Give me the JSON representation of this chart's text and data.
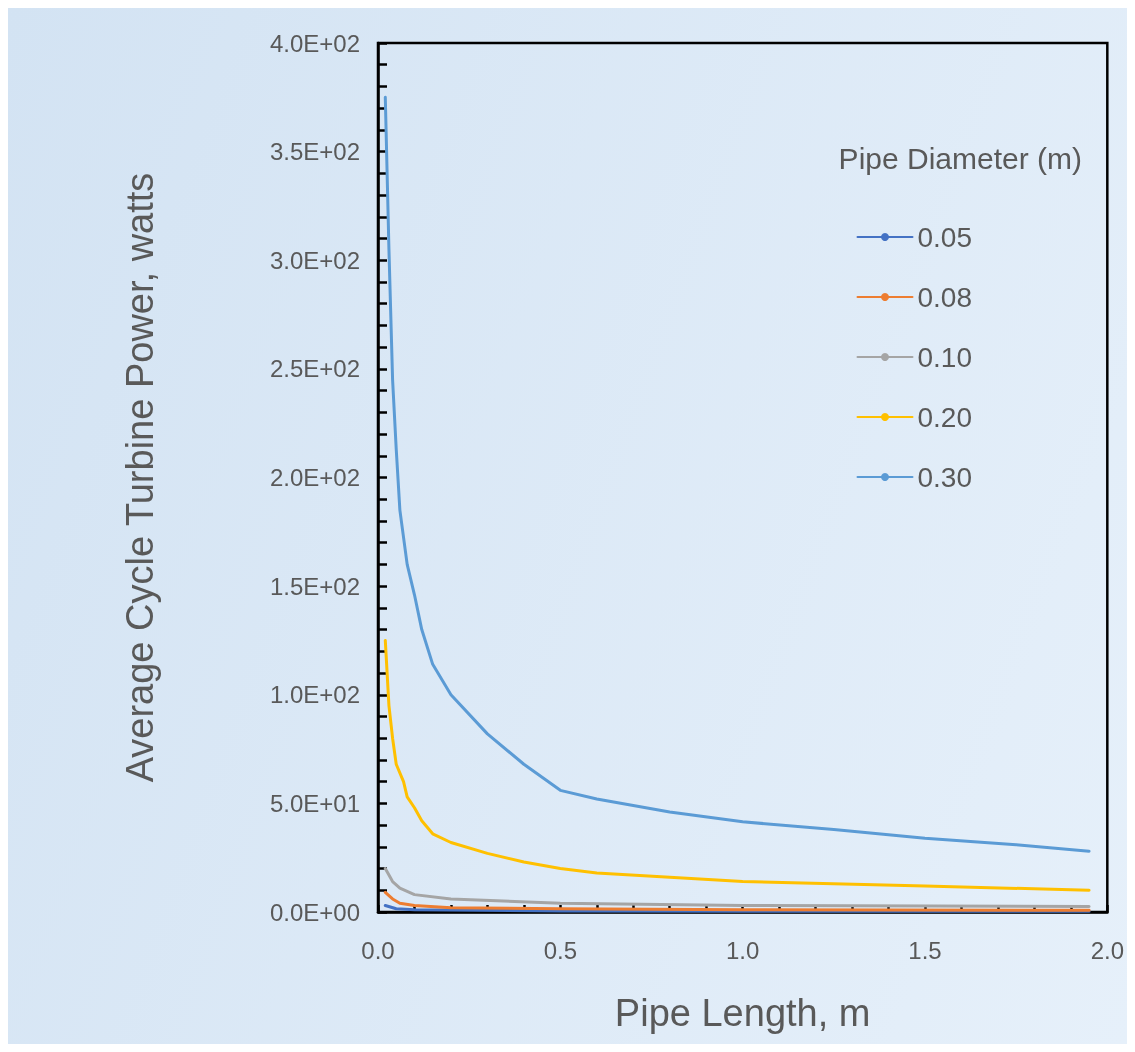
{
  "chart_data": {
    "type": "line",
    "xlabel": "Pipe Length, m",
    "ylabel": "Average Cycle Turbine Power, watts",
    "legend_title": "Pipe Diameter (m)",
    "legend": "top right",
    "grid": false,
    "marker": "none",
    "line_style": "solid",
    "xlim": [
      0,
      2
    ],
    "ylim": [
      0,
      400
    ],
    "xticks": [
      {
        "value": 0,
        "label": "0.0"
      },
      {
        "value": 0.1,
        "label": null
      },
      {
        "value": 0.2,
        "label": null
      },
      {
        "value": 0.3,
        "label": null
      },
      {
        "value": 0.4,
        "label": null
      },
      {
        "value": 0.5,
        "label": "0.5"
      },
      {
        "value": 0.6,
        "label": null
      },
      {
        "value": 0.7,
        "label": null
      },
      {
        "value": 0.8,
        "label": null
      },
      {
        "value": 0.9,
        "label": null
      },
      {
        "value": 1,
        "label": "1.0"
      },
      {
        "value": 1.1,
        "label": null
      },
      {
        "value": 1.2,
        "label": null
      },
      {
        "value": 1.3,
        "label": null
      },
      {
        "value": 1.4,
        "label": null
      },
      {
        "value": 1.5,
        "label": "1.5"
      },
      {
        "value": 1.6,
        "label": null
      },
      {
        "value": 1.7,
        "label": null
      },
      {
        "value": 1.8,
        "label": null
      },
      {
        "value": 1.9,
        "label": null
      },
      {
        "value": 2,
        "label": "2.0"
      }
    ],
    "yticks": [
      {
        "value": 0,
        "label": "0.0E+00"
      },
      {
        "value": 10,
        "label": null
      },
      {
        "value": 20,
        "label": null
      },
      {
        "value": 30,
        "label": null
      },
      {
        "value": 40,
        "label": null
      },
      {
        "value": 50,
        "label": "5.0E+01"
      },
      {
        "value": 60,
        "label": null
      },
      {
        "value": 70,
        "label": null
      },
      {
        "value": 80,
        "label": null
      },
      {
        "value": 90,
        "label": null
      },
      {
        "value": 100,
        "label": "1.0E+02"
      },
      {
        "value": 110,
        "label": null
      },
      {
        "value": 120,
        "label": null
      },
      {
        "value": 130,
        "label": null
      },
      {
        "value": 140,
        "label": null
      },
      {
        "value": 150,
        "label": "1.5E+02"
      },
      {
        "value": 160,
        "label": null
      },
      {
        "value": 170,
        "label": null
      },
      {
        "value": 180,
        "label": null
      },
      {
        "value": 190,
        "label": null
      },
      {
        "value": 200,
        "label": "2.0E+02"
      },
      {
        "value": 210,
        "label": null
      },
      {
        "value": 220,
        "label": null
      },
      {
        "value": 230,
        "label": null
      },
      {
        "value": 240,
        "label": null
      },
      {
        "value": 250,
        "label": "2.5E+02"
      },
      {
        "value": 260,
        "label": null
      },
      {
        "value": 270,
        "label": null
      },
      {
        "value": 280,
        "label": null
      },
      {
        "value": 290,
        "label": null
      },
      {
        "value": 300,
        "label": "3.0E+02"
      },
      {
        "value": 310,
        "label": null
      },
      {
        "value": 320,
        "label": null
      },
      {
        "value": 330,
        "label": null
      },
      {
        "value": 340,
        "label": null
      },
      {
        "value": 350,
        "label": "3.5E+02"
      },
      {
        "value": 360,
        "label": null
      },
      {
        "value": 370,
        "label": null
      },
      {
        "value": 380,
        "label": null
      },
      {
        "value": 390,
        "label": null
      },
      {
        "value": 400,
        "label": "4.0E+02"
      }
    ],
    "series": [
      {
        "name": "0.05",
        "color": "#4472c4",
        "x": [
          0.02,
          0.05,
          0.1,
          0.5,
          1.0,
          1.95
        ],
        "values": [
          3,
          1.5,
          1,
          0.5,
          0.4,
          0.3
        ]
      },
      {
        "name": "0.08",
        "color": "#ed7d31",
        "x": [
          0.02,
          0.04,
          0.06,
          0.1,
          0.2,
          0.5,
          1.0,
          1.95
        ],
        "values": [
          9,
          6,
          4,
          3,
          2,
          1.5,
          1,
          0.8
        ]
      },
      {
        "name": "0.10",
        "color": "#a5a5a5",
        "x": [
          0.02,
          0.04,
          0.06,
          0.1,
          0.2,
          0.5,
          1.0,
          1.95
        ],
        "values": [
          20,
          14,
          11,
          8,
          6,
          4,
          3,
          2.5
        ]
      },
      {
        "name": "0.20",
        "color": "#ffc000",
        "x": [
          0.02,
          0.03,
          0.04,
          0.05,
          0.07,
          0.08,
          0.1,
          0.12,
          0.15,
          0.2,
          0.3,
          0.4,
          0.5,
          0.6,
          0.8,
          1.0,
          1.5,
          1.95
        ],
        "values": [
          125,
          95,
          80,
          68,
          60,
          53,
          48,
          42,
          36,
          32,
          27,
          23,
          20,
          18,
          16,
          14,
          12,
          10
        ]
      },
      {
        "name": "0.30",
        "color": "#5b9bd5",
        "x": [
          0.02,
          0.03,
          0.04,
          0.05,
          0.06,
          0.08,
          0.1,
          0.12,
          0.15,
          0.2,
          0.3,
          0.4,
          0.5,
          0.6,
          0.7,
          0.8,
          1.0,
          1.25,
          1.5,
          1.75,
          1.95
        ],
        "values": [
          375,
          305,
          245,
          213,
          185,
          160,
          146,
          130,
          114,
          100,
          82,
          68,
          56,
          52,
          49,
          46,
          41.5,
          38,
          34,
          31,
          28
        ]
      }
    ]
  }
}
